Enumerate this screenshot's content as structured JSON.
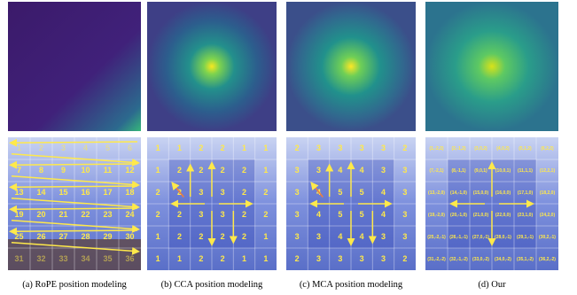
{
  "panels": [
    {
      "caption": "(a) RoPE position modeling",
      "grid": [
        [
          1,
          2,
          3,
          4,
          5,
          6
        ],
        [
          7,
          8,
          9,
          10,
          11,
          12
        ],
        [
          13,
          14,
          15,
          16,
          17,
          18
        ],
        [
          19,
          20,
          21,
          22,
          23,
          24
        ],
        [
          25,
          26,
          27,
          28,
          29,
          30
        ],
        [
          31,
          32,
          33,
          34,
          35,
          36
        ]
      ]
    },
    {
      "caption": "(b) CCA position modeling",
      "grid": [
        [
          1,
          1,
          2,
          2,
          1,
          1
        ],
        [
          1,
          2,
          2,
          2,
          2,
          1
        ],
        [
          2,
          2,
          3,
          3,
          2,
          2
        ],
        [
          2,
          2,
          3,
          3,
          2,
          2
        ],
        [
          1,
          2,
          2,
          2,
          2,
          1
        ],
        [
          1,
          1,
          2,
          2,
          1,
          1
        ]
      ]
    },
    {
      "caption": "(c) MCA position modeling",
      "grid": [
        [
          2,
          3,
          3,
          3,
          3,
          2
        ],
        [
          3,
          3,
          4,
          4,
          3,
          3
        ],
        [
          3,
          4,
          5,
          5,
          4,
          3
        ],
        [
          3,
          4,
          5,
          5,
          4,
          3
        ],
        [
          3,
          3,
          4,
          4,
          3,
          3
        ],
        [
          2,
          3,
          3,
          3,
          3,
          2
        ]
      ]
    },
    {
      "caption": "(d) Our",
      "grid": [
        [
          "(1,-2,2)",
          "(2,-1,2)",
          "(3,0,2)",
          "(4,0,2)",
          "(5,1,2)",
          "(6,2,2)"
        ],
        [
          "(7,-2,1)",
          "(8,-1,1)",
          "(9,0,1)",
          "(10,0,1)",
          "(11,1,1)",
          "(12,2,1)"
        ],
        [
          "(13,-2,0)",
          "(14,-1,0)",
          "(15,0,0)",
          "(16,0,0)",
          "(17,1,0)",
          "(18,2,0)"
        ],
        [
          "(19,-2,0)",
          "(20,-1,0)",
          "(21,0,0)",
          "(22,0,0)",
          "(23,1,0)",
          "(24,2,0)"
        ],
        [
          "(25,-2,-1)",
          "(26,-1,-1)",
          "(27,0,-1)",
          "(28,0,-1)",
          "(29,1,-1)",
          "(30,2,-1)"
        ],
        [
          "(31,-2,-2)",
          "(32,-1,-2)",
          "(33,0,-2)",
          "(34,0,-2)",
          "(35,1,-2)",
          "(36,2,-2)"
        ]
      ]
    }
  ]
}
